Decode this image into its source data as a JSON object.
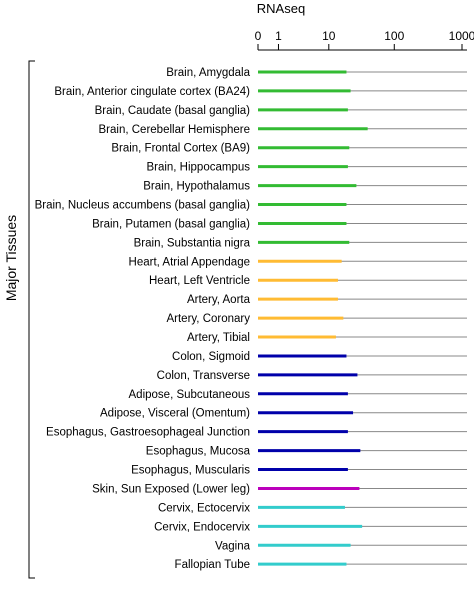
{
  "chart_data": {
    "type": "bar",
    "orientation": "horizontal",
    "title": "RNAseq",
    "group_label": "Major Tissues",
    "x_scale": "log1p",
    "x_ticks": [
      0,
      1,
      10,
      100,
      1000
    ],
    "x_tick_labels": [
      "0",
      "1",
      "10",
      "100",
      "1000"
    ],
    "xlim": [
      0,
      1000
    ],
    "gridlines": "horizontal per row",
    "categories": [
      "Brain, Amygdala",
      "Brain, Anterior cingulate cortex (BA24)",
      "Brain, Caudate (basal ganglia)",
      "Brain, Cerebellar Hemisphere",
      "Brain, Frontal Cortex (BA9)",
      "Brain, Hippocampus",
      "Brain, Hypothalamus",
      "Brain, Nucleus accumbens (basal ganglia)",
      "Brain, Putamen (basal ganglia)",
      "Brain, Substantia nigra",
      "Heart, Atrial Appendage",
      "Heart, Left Ventricle",
      "Artery, Aorta",
      "Artery, Coronary",
      "Artery, Tibial",
      "Colon, Sigmoid",
      "Colon, Transverse",
      "Adipose, Subcutaneous",
      "Adipose, Visceral (Omentum)",
      "Esophagus, Gastroesophageal Junction",
      "Esophagus, Mucosa",
      "Esophagus, Muscularis",
      "Skin, Sun Exposed (Lower leg)",
      "Cervix, Ectocervix",
      "Cervix, Endocervix",
      "Vagina",
      "Fallopian Tube"
    ],
    "values": [
      19,
      22,
      20,
      40,
      21,
      20,
      27,
      19,
      19,
      21,
      16,
      14,
      14,
      17,
      13,
      19,
      28,
      20,
      24,
      20,
      31,
      20,
      30,
      18,
      33,
      22,
      19
    ],
    "colors": [
      "#33bb33",
      "#33bb33",
      "#33bb33",
      "#33bb33",
      "#33bb33",
      "#33bb33",
      "#33bb33",
      "#33bb33",
      "#33bb33",
      "#33bb33",
      "#ffbb33",
      "#ffbb33",
      "#ffbb33",
      "#ffbb33",
      "#ffbb33",
      "#0000aa",
      "#0000aa",
      "#0000aa",
      "#0000aa",
      "#0000aa",
      "#0000aa",
      "#0000aa",
      "#bb00bb",
      "#33cccc",
      "#33cccc",
      "#33cccc",
      "#33cccc"
    ],
    "gridline_color": "#888888"
  }
}
